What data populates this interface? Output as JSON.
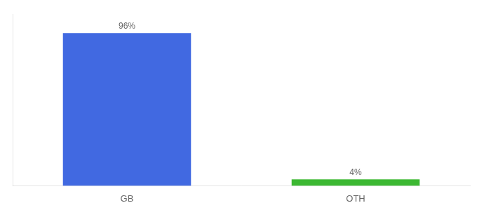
{
  "chart_data": {
    "type": "bar",
    "categories": [
      "GB",
      "OTH"
    ],
    "values": [
      96,
      4
    ],
    "value_labels": [
      "96%",
      "4%"
    ],
    "colors": [
      "#4169e1",
      "#3cb832"
    ],
    "ylim": [
      0,
      108
    ],
    "data_labels": true,
    "grid": false,
    "tick_labels": "x"
  }
}
